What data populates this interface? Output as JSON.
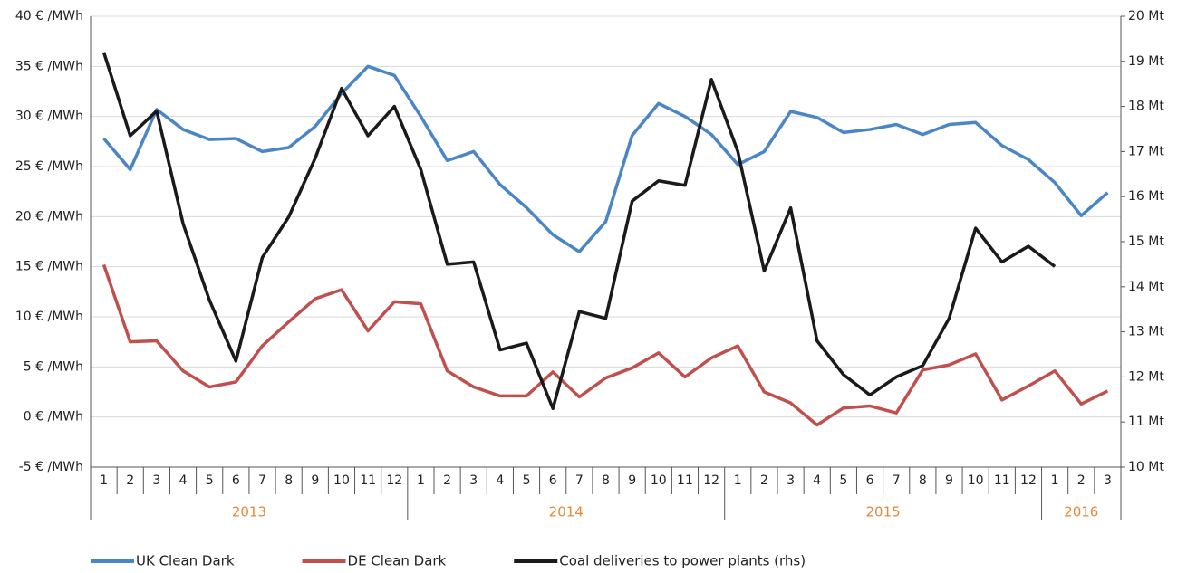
{
  "chart_data": {
    "type": "line",
    "categories": [
      "1",
      "2",
      "3",
      "4",
      "5",
      "6",
      "7",
      "8",
      "9",
      "10",
      "11",
      "12",
      "1",
      "2",
      "3",
      "4",
      "5",
      "6",
      "7",
      "8",
      "9",
      "10",
      "11",
      "12",
      "1",
      "2",
      "3",
      "4",
      "5",
      "6",
      "7",
      "8",
      "9",
      "10",
      "11",
      "12",
      "1",
      "2",
      "3"
    ],
    "x_groups": [
      "2013",
      "2014",
      "2015",
      "2016"
    ],
    "series": [
      {
        "name": "UK Clean Dark",
        "color": "#4a86c5",
        "values": [
          27.8,
          24.7,
          30.7,
          28.7,
          27.7,
          27.8,
          26.5,
          26.9,
          29.0,
          32.3,
          35.0,
          34.1,
          30.0,
          25.6,
          26.5,
          23.2,
          20.9,
          18.2,
          16.5,
          19.5,
          28.1,
          31.3,
          30.0,
          28.2,
          25.2,
          26.5,
          30.5,
          29.9,
          28.4,
          28.7,
          29.2,
          28.2,
          29.2,
          29.4,
          27.1,
          25.7,
          23.4,
          20.1,
          22.4
        ]
      },
      {
        "name": "DE Clean Dark",
        "color": "#c0504d",
        "values": [
          15.2,
          7.5,
          7.6,
          4.6,
          3.0,
          3.5,
          7.1,
          9.5,
          11.8,
          12.7,
          8.6,
          11.5,
          11.3,
          4.6,
          3.0,
          2.1,
          2.1,
          4.5,
          2.0,
          3.9,
          4.9,
          6.4,
          4.0,
          5.9,
          7.1,
          2.5,
          1.4,
          -0.8,
          0.9,
          1.1,
          0.4,
          4.7,
          5.2,
          6.3,
          1.7,
          3.1,
          4.6,
          1.3,
          2.6
        ]
      },
      {
        "name": "Coal deliveries to power plants (rhs)",
        "color": "#1a1a1a",
        "axis": "y2",
        "values": [
          19.2,
          17.35,
          17.9,
          15.4,
          13.7,
          12.35,
          14.65,
          15.55,
          16.85,
          18.4,
          17.35,
          18.0,
          16.6,
          14.5,
          14.55,
          12.6,
          12.75,
          11.3,
          13.45,
          13.3,
          15.9,
          16.35,
          16.25,
          18.6,
          17.0,
          14.35,
          15.75,
          12.8,
          12.05,
          11.6,
          12.0,
          12.25,
          13.3,
          15.3,
          14.55,
          14.9,
          14.45,
          null,
          null
        ]
      }
    ],
    "ylim": [
      -5,
      40
    ],
    "yticks": [
      {
        "value": -5,
        "label": "-5 € /MWh"
      },
      {
        "value": 0,
        "label": "0 € /MWh"
      },
      {
        "value": 5,
        "label": "5 € /MWh"
      },
      {
        "value": 10,
        "label": "10 € /MWh"
      },
      {
        "value": 15,
        "label": "15 € /MWh"
      },
      {
        "value": 20,
        "label": "20 € /MWh"
      },
      {
        "value": 25,
        "label": "25 € /MWh"
      },
      {
        "value": 30,
        "label": "30 € /MWh"
      },
      {
        "value": 35,
        "label": "35 € /MWh"
      },
      {
        "value": 40,
        "label": "40 € /MWh"
      }
    ],
    "y2lim": [
      10,
      20
    ],
    "y2ticks": [
      {
        "value": 10,
        "label": "10 Mt"
      },
      {
        "value": 11,
        "label": "11 Mt"
      },
      {
        "value": 12,
        "label": "12 Mt"
      },
      {
        "value": 13,
        "label": "13 Mt"
      },
      {
        "value": 14,
        "label": "14 Mt"
      },
      {
        "value": 15,
        "label": "15 Mt"
      },
      {
        "value": 16,
        "label": "16 Mt"
      },
      {
        "value": 17,
        "label": "17 Mt"
      },
      {
        "value": 18,
        "label": "18 Mt"
      },
      {
        "value": 19,
        "label": "19 Mt"
      },
      {
        "value": 20,
        "label": "20 Mt"
      }
    ],
    "grid": true
  }
}
